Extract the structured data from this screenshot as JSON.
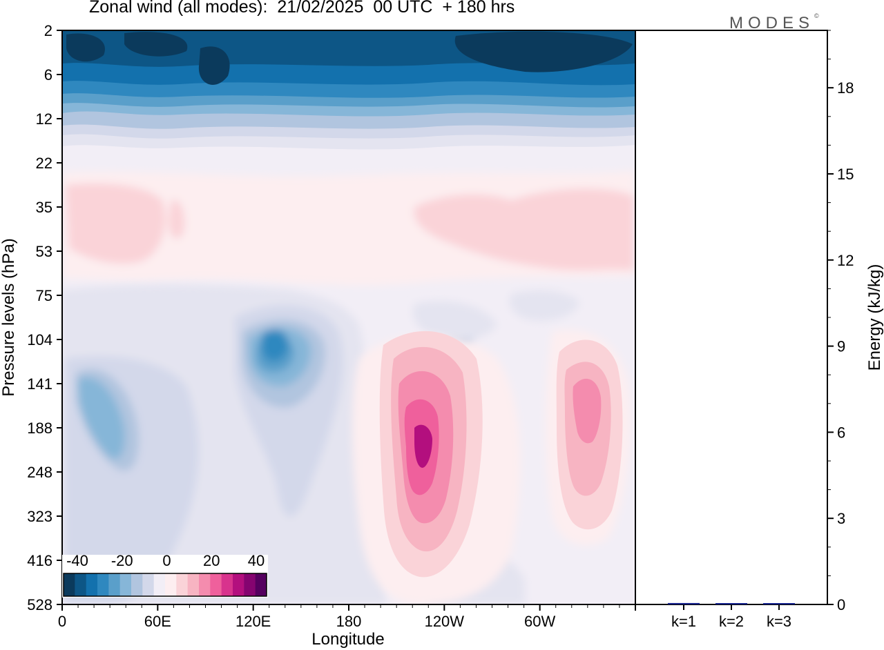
{
  "header": {
    "title": "Zonal wind (all modes):  21/02/2025  00 UTC  + 180 hrs",
    "brand": "MODES",
    "brand_mark": "©"
  },
  "chart_data": [
    {
      "type": "heatmap",
      "title": "Zonal wind (all modes):  21/02/2025  00 UTC  + 180 hrs",
      "xlabel": "Longitude",
      "ylabel": "Pressure levels (hPa)",
      "x_ticks": [
        "0",
        "60E",
        "120E",
        "180",
        "120W",
        "60W"
      ],
      "x_range_deg": [
        0,
        360
      ],
      "y_ticks": [
        "2",
        "6",
        "12",
        "22",
        "35",
        "53",
        "75",
        "104",
        "141",
        "188",
        "248",
        "323",
        "416",
        "528"
      ],
      "colorbar": {
        "ticks": [
          "-40",
          "-20",
          "0",
          "20",
          "40"
        ],
        "colors": [
          "#0b3a5c",
          "#0d5686",
          "#1371ad",
          "#2f88bf",
          "#5a9fca",
          "#86b6d8",
          "#b1c5df",
          "#d3d8ea",
          "#f2eef6",
          "#fdeef0",
          "#fad3d8",
          "#f7b4c2",
          "#f48cae",
          "#ef609c",
          "#d8338d",
          "#b30f7e",
          "#850470",
          "#55005f"
        ]
      },
      "features": [
        {
          "lon": 50,
          "level": "6",
          "value": -38
        },
        {
          "lon": 290,
          "level": "4",
          "value": -40
        },
        {
          "lon": 45,
          "level": "35",
          "value": 8
        },
        {
          "lon": 300,
          "level": "45",
          "value": 8
        },
        {
          "lon": 130,
          "level": "110",
          "value": -30
        },
        {
          "lon": 35,
          "level": "170",
          "value": -20
        },
        {
          "lon": 230,
          "level": "188",
          "value": 40
        },
        {
          "lon": 325,
          "level": "160",
          "value": 28
        },
        {
          "lon": 250,
          "level": "100",
          "value": -12
        }
      ]
    },
    {
      "type": "bar",
      "categories": [
        "k=1",
        "k=2",
        "k=3"
      ],
      "values": [
        0.05,
        0.02,
        0.02
      ],
      "ylabel": "Energy (kJ/kg)",
      "ylim": [
        0,
        20
      ],
      "y_ticks": [
        "0",
        "3",
        "6",
        "9",
        "12",
        "15",
        "18"
      ],
      "bar_color": "#14208a"
    }
  ]
}
